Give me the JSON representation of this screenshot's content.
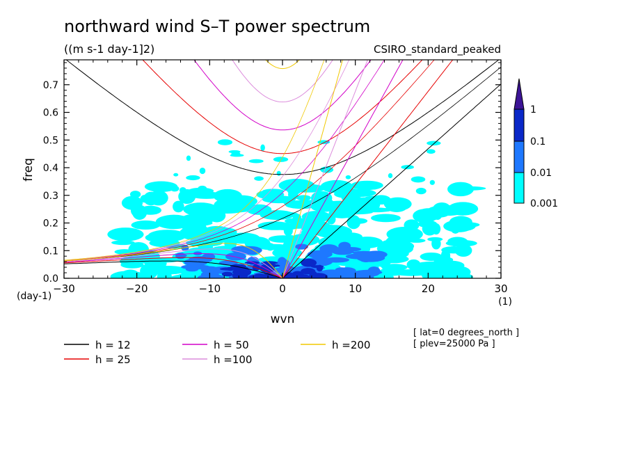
{
  "chart_data": {
    "type": "contour",
    "title": "northward wind S–T power spectrum",
    "units": "((m s-1 day-1]2)",
    "model": "CSIRO_standard_peaked",
    "xlabel": "wvn",
    "xunit": "(1)",
    "ylabel": "freq",
    "yunit": "(day-1)",
    "xlim": [
      -30,
      30
    ],
    "ylim": [
      0,
      0.79
    ],
    "xticks": [
      -30,
      -20,
      -10,
      0,
      10,
      20,
      30
    ],
    "yticks": [
      0.0,
      0.1,
      0.2,
      0.3,
      0.4,
      0.5,
      0.6,
      0.7
    ],
    "xtick_labels": [
      "−30",
      "−20",
      "−10",
      "0",
      "10",
      "20",
      "30"
    ],
    "ytick_labels": [
      "0.0",
      "0.1",
      "0.2",
      "0.3",
      "0.4",
      "0.5",
      "0.6",
      "0.7"
    ],
    "colorbar": {
      "levels": [
        "0.001",
        "0.01",
        "0.1",
        "1"
      ],
      "colors": [
        "#00ffff",
        "#1e78ff",
        "#0a28c8",
        "#3c1496"
      ]
    },
    "dispersion_curves": [
      {
        "label": "h = 12",
        "h": 12,
        "color": "#000000"
      },
      {
        "label": "h = 25",
        "h": 25,
        "color": "#e60000"
      },
      {
        "label": "h = 50",
        "h": 50,
        "color": "#d200c8"
      },
      {
        "label": "h =100",
        "h": 100,
        "color": "#dc8cdc"
      },
      {
        "label": "h =200",
        "h": 200,
        "color": "#f0c800"
      }
    ],
    "annotations": [
      "[ lat=0 degrees_north ]",
      "[ plev=25000 Pa ]"
    ]
  }
}
